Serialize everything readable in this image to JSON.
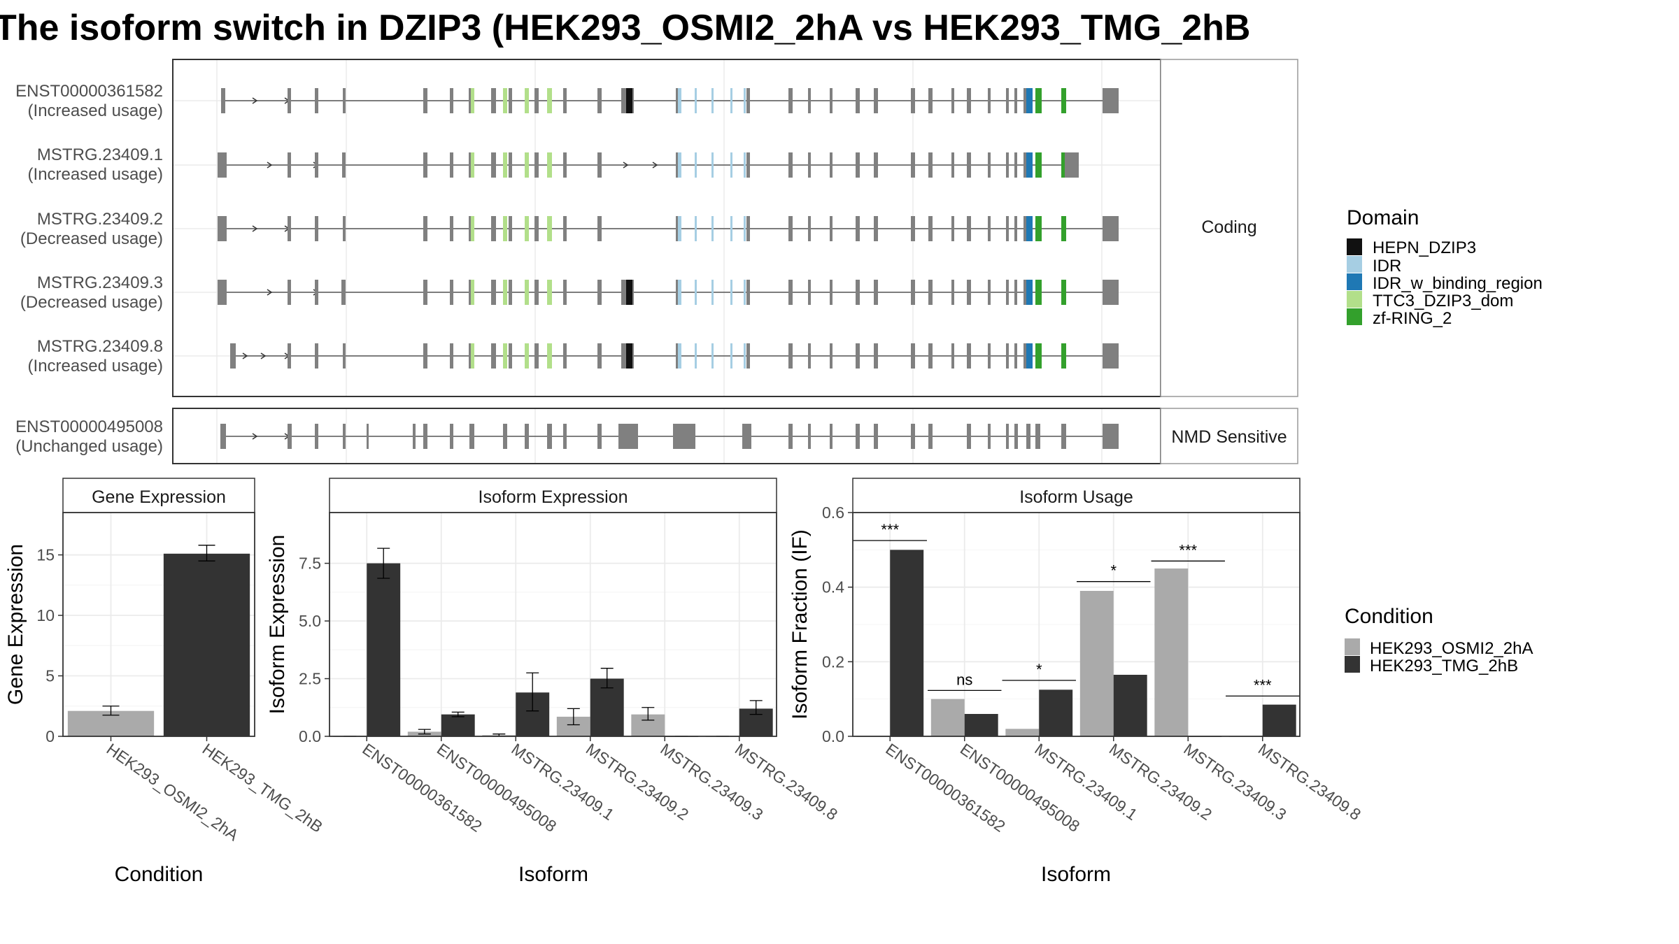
{
  "title": "The isoform switch in DZIP3 (HEK293_OSMI2_2hA vs HEK293_TMG_2hB",
  "colors": {
    "HEPN_DZIP3": "#111111",
    "IDR": "#a6cee3",
    "IDR_w_binding_region": "#1f78b4",
    "TTC3_DZIP3_dom": "#b2df8a",
    "zf-RING_2": "#33a02c",
    "exon": "#808080",
    "cond_a": "#aaaaaa",
    "cond_b": "#333333"
  },
  "structure": {
    "coding_strip": "Coding",
    "nmd_strip": "NMD Sensitive",
    "coding_transcripts": [
      {
        "id": "ENST00000361582",
        "usage": "(Increased usage)"
      },
      {
        "id": "MSTRG.23409.1",
        "usage": "(Increased usage)"
      },
      {
        "id": "MSTRG.23409.2",
        "usage": "(Decreased usage)"
      },
      {
        "id": "MSTRG.23409.3",
        "usage": "(Decreased usage)"
      },
      {
        "id": "MSTRG.23409.8",
        "usage": "(Increased usage)"
      }
    ],
    "nmd_transcripts": [
      {
        "id": "ENST00000495008",
        "usage": "(Unchanged usage)"
      }
    ]
  },
  "legend_domain": {
    "title": "Domain",
    "items": [
      "HEPN_DZIP3",
      "IDR",
      "IDR_w_binding_region",
      "TTC3_DZIP3_dom",
      "zf-RING_2"
    ]
  },
  "legend_condition": {
    "title": "Condition",
    "items": [
      "HEK293_OSMI2_2hA",
      "HEK293_TMG_2hB"
    ]
  },
  "chart_data": [
    {
      "type": "bar",
      "strip": "Gene Expression",
      "xlabel": "Condition",
      "ylabel": "Gene Expression",
      "ylim": [
        0,
        18.5
      ],
      "yticks": [
        0,
        5,
        10,
        15
      ],
      "ytick_labels": [
        "0",
        "5",
        "10",
        "15"
      ],
      "categories": [
        "HEK293_OSMI2_2hA",
        "HEK293_TMG_2hB"
      ],
      "values": [
        2.1,
        15.1
      ],
      "err_low": [
        1.75,
        14.5
      ],
      "err_high": [
        2.5,
        15.8
      ]
    },
    {
      "type": "bar",
      "strip": "Isoform Expression",
      "xlabel": "Isoform",
      "ylabel": "Isoform Expression",
      "ylim": [
        0,
        9.7
      ],
      "yticks": [
        0,
        2.5,
        5,
        7.5
      ],
      "ytick_labels": [
        "0.0",
        "2.5",
        "5.0",
        "7.5"
      ],
      "categories": [
        "ENST00000361582",
        "ENST00000495008",
        "MSTRG.23409.1",
        "MSTRG.23409.2",
        "MSTRG.23409.3",
        "MSTRG.23409.8"
      ],
      "series": [
        {
          "name": "HEK293_OSMI2_2hA",
          "values": [
            0.0,
            0.2,
            0.05,
            0.85,
            0.95,
            0.0
          ],
          "err_low": [
            0.0,
            0.1,
            0.0,
            0.5,
            0.7,
            0.0
          ],
          "err_high": [
            0.0,
            0.3,
            0.1,
            1.2,
            1.25,
            0.0
          ]
        },
        {
          "name": "HEK293_TMG_2hB",
          "values": [
            7.5,
            0.95,
            1.9,
            2.5,
            0.0,
            1.2
          ],
          "err_low": [
            6.85,
            0.85,
            1.1,
            2.1,
            0.0,
            0.95
          ],
          "err_high": [
            8.15,
            1.05,
            2.75,
            2.95,
            0.0,
            1.55
          ]
        }
      ]
    },
    {
      "type": "bar",
      "strip": "Isoform Usage",
      "xlabel": "Isoform",
      "ylabel": "Isoform Fraction (IF)",
      "ylim": [
        0,
        0.6
      ],
      "yticks": [
        0,
        0.2,
        0.4,
        0.6
      ],
      "ytick_labels": [
        "0.0",
        "0.2",
        "0.4",
        "0.6"
      ],
      "categories": [
        "ENST00000361582",
        "ENST00000495008",
        "MSTRG.23409.1",
        "MSTRG.23409.2",
        "MSTRG.23409.3",
        "MSTRG.23409.8"
      ],
      "series": [
        {
          "name": "HEK293_OSMI2_2hA",
          "values": [
            0.0,
            0.1,
            0.02,
            0.39,
            0.45,
            0.0
          ]
        },
        {
          "name": "HEK293_TMG_2hB",
          "values": [
            0.5,
            0.06,
            0.125,
            0.165,
            0.0,
            0.085
          ]
        }
      ],
      "significance": [
        "***",
        "ns",
        "*",
        "*",
        "***",
        "***"
      ],
      "significance_y": [
        0.525,
        0.123,
        0.15,
        0.415,
        0.47,
        0.108
      ]
    }
  ]
}
